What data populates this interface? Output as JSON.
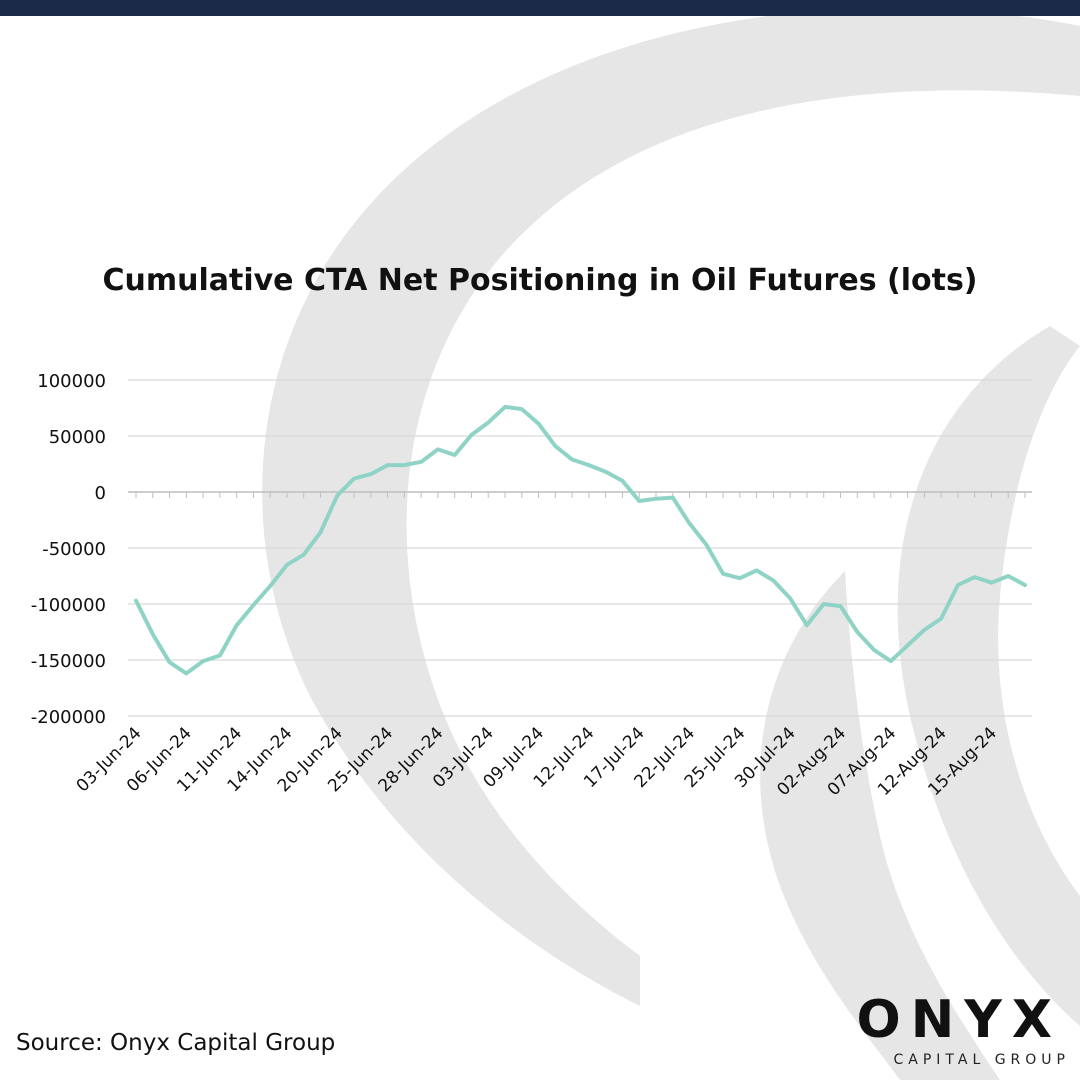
{
  "chart_data": {
    "type": "line",
    "title": "Cumulative CTA Net Positioning in Oil Futures (lots)",
    "xlabel": "",
    "ylabel": "",
    "ylim": [
      -200000,
      100000
    ],
    "yticks": [
      100000,
      50000,
      0,
      -50000,
      -100000,
      -150000,
      -200000
    ],
    "grid": true,
    "legend": "none",
    "line_color": "#8fd3c7",
    "x_tick_labels": [
      "03-Jun-24",
      "06-Jun-24",
      "11-Jun-24",
      "14-Jun-24",
      "20-Jun-24",
      "25-Jun-24",
      "28-Jun-24",
      "03-Jul-24",
      "09-Jul-24",
      "12-Jul-24",
      "17-Jul-24",
      "22-Jul-24",
      "25-Jul-24",
      "30-Jul-24",
      "02-Aug-24",
      "07-Aug-24",
      "12-Aug-24",
      "15-Aug-24"
    ],
    "series": [
      {
        "values": [
          -97000,
          -127000,
          -152000,
          -162000,
          -151000,
          -146000,
          -119000,
          -101000,
          -84000,
          -65000,
          -56000,
          -36000,
          -3000,
          12000,
          16000,
          24000,
          24000,
          27000,
          38000,
          33000,
          51000,
          62000,
          76000,
          74000,
          61000,
          41000,
          29000,
          24000,
          18000,
          10000,
          -8000,
          -6000,
          -5000,
          -28000,
          -47000,
          -73000,
          -77000,
          -70000,
          -79000,
          -95000,
          -119000,
          -100000,
          -102000,
          -125000,
          -141000,
          -151000,
          -137000,
          -123000,
          -113000,
          -83000,
          -76000,
          -81000,
          -75000,
          -83000
        ]
      }
    ]
  },
  "footer": {
    "source": "Source: Onyx Capital Group",
    "logo_word": "ONYX",
    "logo_sub": "CAPITAL GROUP"
  }
}
